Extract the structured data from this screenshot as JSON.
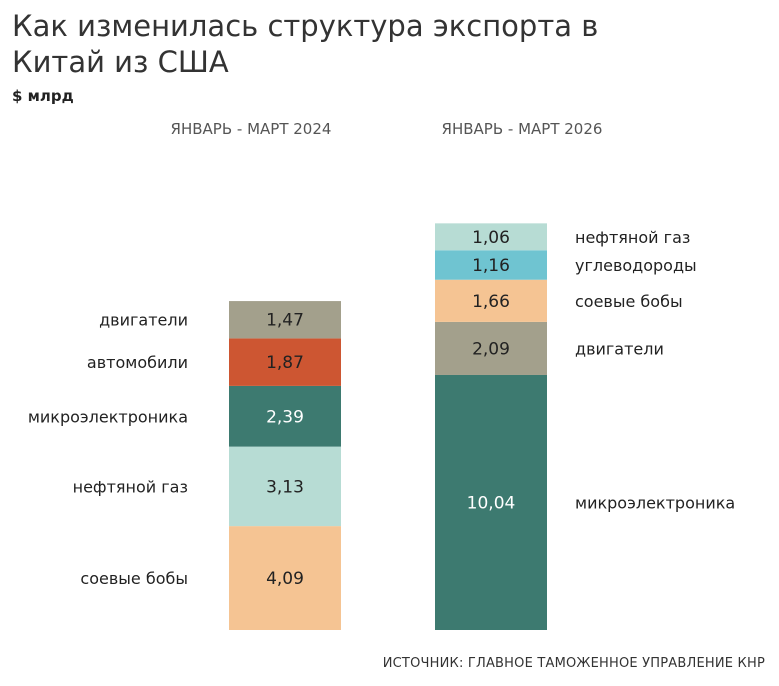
{
  "title": "Как изменилась структура экспорта в Китай из США",
  "unit": "$ млрд",
  "source": "ИСТОЧНИК: ГЛАВНОЕ ТАМОЖЕННОЕ УПРАВЛЕНИЕ КНР",
  "chart_data": {
    "type": "bar",
    "stacked": true,
    "title": "Как изменилась структура экспорта в Китай из США",
    "ylabel": "$ млрд",
    "categories": [
      "ЯНВАРЬ - МАРТ 2024",
      "ЯНВАРЬ - МАРТ 2026"
    ],
    "columns": [
      {
        "category": "ЯНВАРЬ - МАРТ 2024",
        "segments": [
          {
            "label": "соевые бобы",
            "value": 4.09,
            "value_label": "4,09",
            "color": "#f5c493",
            "text_color": "#222222"
          },
          {
            "label": "нефтяной газ",
            "value": 3.13,
            "value_label": "3,13",
            "color": "#b7dcd4",
            "text_color": "#222222"
          },
          {
            "label": "микроэлектроника",
            "value": 2.39,
            "value_label": "2,39",
            "color": "#3d7a70",
            "text_color": "#ffffff"
          },
          {
            "label": "автомобили",
            "value": 1.87,
            "value_label": "1,87",
            "color": "#cd5632",
            "text_color": "#222222"
          },
          {
            "label": "двигатели",
            "value": 1.47,
            "value_label": "1,47",
            "color": "#a3a08c",
            "text_color": "#222222"
          }
        ]
      },
      {
        "category": "ЯНВАРЬ - МАРТ 2026",
        "segments": [
          {
            "label": "микроэлектроника",
            "value": 10.04,
            "value_label": "10,04",
            "color": "#3d7a70",
            "text_color": "#ffffff"
          },
          {
            "label": "двигатели",
            "value": 2.09,
            "value_label": "2,09",
            "color": "#a3a08c",
            "text_color": "#222222"
          },
          {
            "label": "соевые бобы",
            "value": 1.66,
            "value_label": "1,66",
            "color": "#f5c493",
            "text_color": "#222222"
          },
          {
            "label": "углеводороды",
            "value": 1.16,
            "value_label": "1,16",
            "color": "#6fc4d1",
            "text_color": "#222222"
          },
          {
            "label": "нефтяной газ",
            "value": 1.06,
            "value_label": "1,06",
            "color": "#b7dcd4",
            "text_color": "#222222"
          }
        ]
      }
    ],
    "grid": false
  }
}
